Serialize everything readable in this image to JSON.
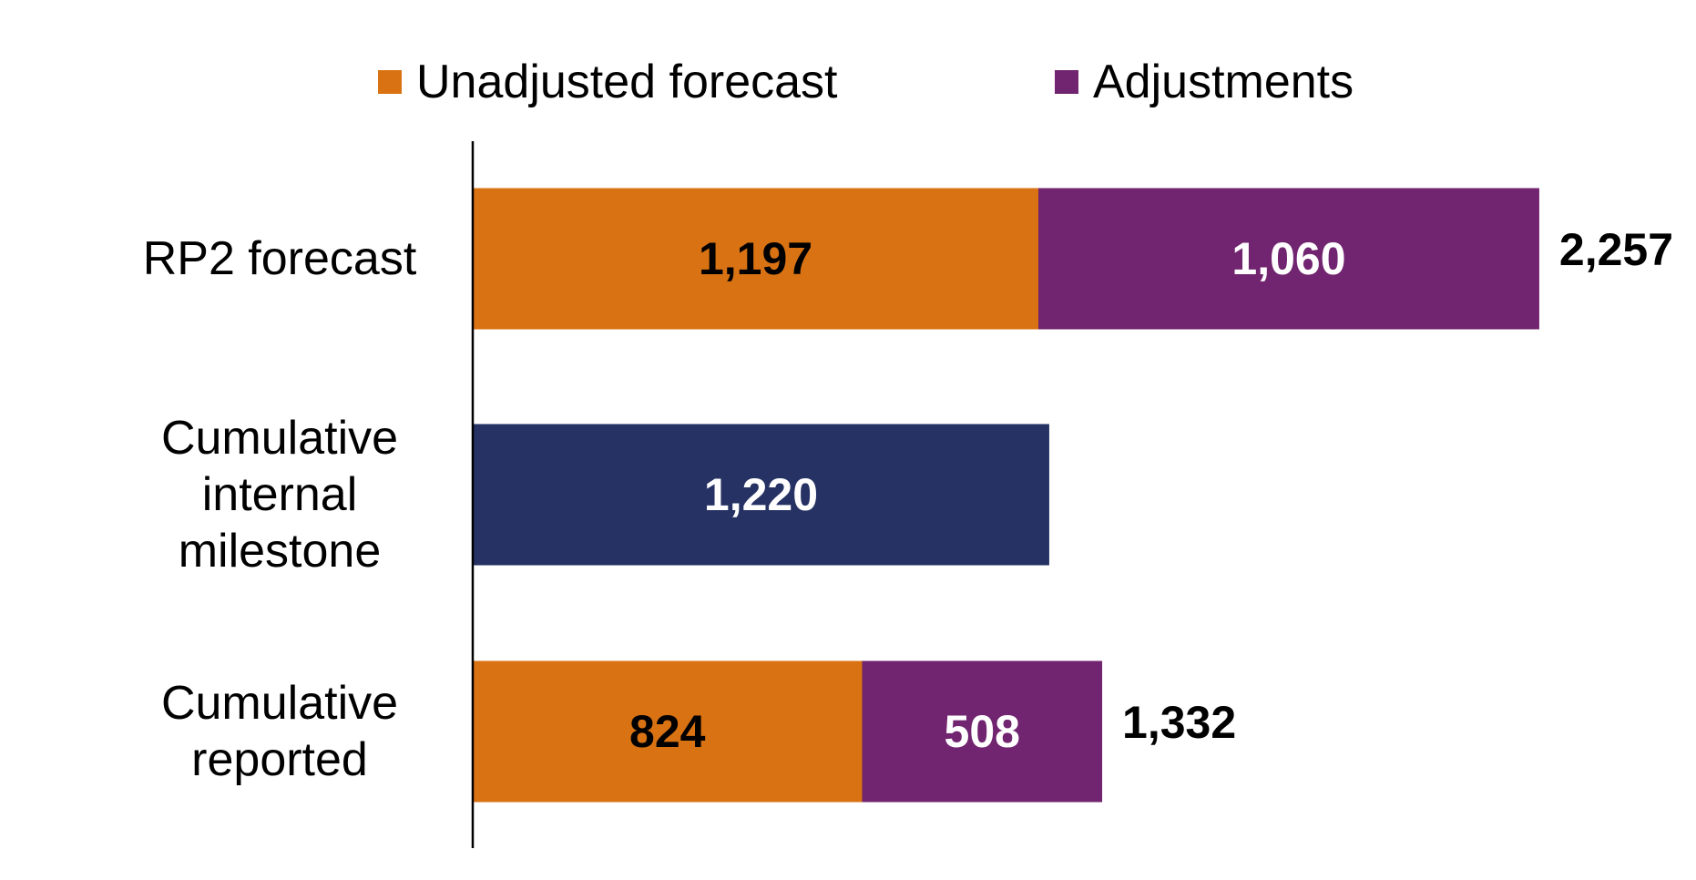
{
  "chart_data": {
    "type": "bar",
    "orientation": "horizontal",
    "stacked": true,
    "categories": [
      "RP2 forecast",
      "Cumulative internal milestone",
      "Cumulative reported"
    ],
    "series": [
      {
        "name": "Unadjusted forecast",
        "color": "#d97213",
        "label_color": "#000000",
        "values": [
          1197,
          null,
          824
        ],
        "value_labels": [
          "1,197",
          null,
          "824"
        ]
      },
      {
        "name": "Adjustments",
        "color": "#71246f",
        "label_color": "#ffffff",
        "values": [
          1060,
          null,
          508
        ],
        "value_labels": [
          "1,060",
          null,
          "508"
        ]
      },
      {
        "color": "#253263",
        "label_color": "#ffffff",
        "values": [
          null,
          1220,
          null
        ],
        "value_labels": [
          null,
          "1,220",
          null
        ]
      }
    ],
    "totals": {
      "values": [
        2257,
        null,
        1332
      ],
      "value_labels": [
        "2,257",
        null,
        "1,332"
      ]
    },
    "xlim": [
      0,
      2500
    ],
    "legend": "top"
  }
}
